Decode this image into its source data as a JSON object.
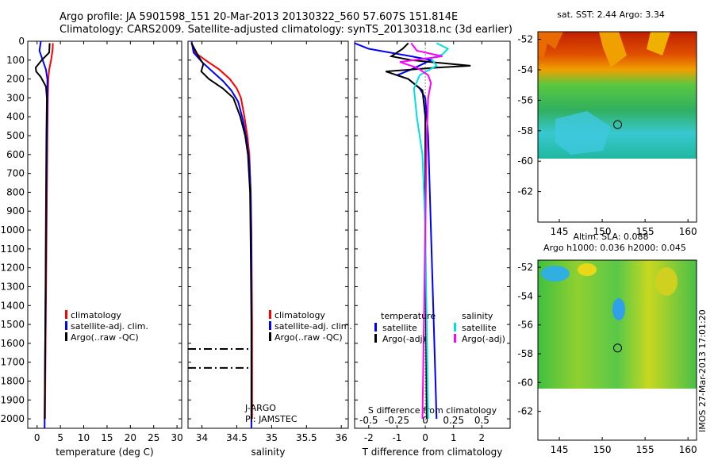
{
  "header": {
    "line1": "Argo profile: JA 5901598_151 20-Mar-2013 20130322_560 57.607S 151.814E",
    "line2": "Climatology: CARS2009. Satellite-adjusted climatology: synTS_20130318.nc (3d earlier)"
  },
  "watermark": "IMOS 27-Mar-2013 17:01:20",
  "colors": {
    "climatology": "#ff0000",
    "satellite": "#0000ff",
    "argo": "#000000",
    "sal_satellite": "#00e0e0",
    "sal_argo": "#ff00ff",
    "empty_map": "#ffffff"
  },
  "shared_depth_axis": {
    "ylim": [
      0,
      2050
    ],
    "ticks": [
      0,
      100,
      200,
      300,
      400,
      500,
      600,
      700,
      800,
      900,
      1000,
      1100,
      1200,
      1300,
      1400,
      1500,
      1600,
      1700,
      1800,
      1900,
      2000
    ]
  },
  "chart_data": [
    {
      "type": "line",
      "id": "temperature",
      "xlabel": "temperature (deg C)",
      "xlim": [
        -2,
        31
      ],
      "xticks": [
        0,
        5,
        10,
        15,
        20,
        25,
        30
      ],
      "ylim": [
        0,
        2050
      ],
      "legend": [
        "climatology",
        "satellite-adj. clim.",
        "Argo(..raw -QC)"
      ],
      "series": [
        {
          "name": "climatology",
          "color_key": "climatology",
          "x": [
            3.4,
            3.3,
            3.0,
            2.6,
            2.4,
            2.3,
            2.2,
            2.1,
            2.0,
            1.9,
            1.8,
            1.7
          ],
          "y": [
            10,
            50,
            100,
            150,
            200,
            300,
            500,
            800,
            1100,
            1400,
            1700,
            2000
          ]
        },
        {
          "name": "satellite-adj. clim.",
          "color_key": "satellite",
          "x": [
            0.8,
            0.5,
            1.2,
            1.9,
            2.2,
            2.2,
            2.1,
            2.0,
            1.9,
            1.8,
            1.7,
            1.6
          ],
          "y": [
            0,
            50,
            100,
            150,
            200,
            300,
            500,
            800,
            1100,
            1400,
            1700,
            2050
          ]
        },
        {
          "name": "Argo(..raw -QC)",
          "color_key": "argo",
          "x": [
            2.7,
            2.6,
            1.0,
            -0.3,
            -0.2,
            0.8,
            1.9,
            2.1,
            2.0,
            1.9,
            1.8,
            1.6
          ],
          "y": [
            10,
            60,
            100,
            140,
            160,
            190,
            240,
            300,
            500,
            900,
            1400,
            2000
          ]
        }
      ]
    },
    {
      "type": "line",
      "id": "salinity",
      "xlabel": "salinity",
      "xlim": [
        33.8,
        36.1
      ],
      "xticks": [
        34,
        34.5,
        35,
        35.5,
        36
      ],
      "xticklabels": [
        "34",
        "34.5",
        "35",
        "35.5",
        "36"
      ],
      "ylim": [
        0,
        2050
      ],
      "legend": [
        "climatology",
        "satellite-adj. clim.",
        "Argo(..raw -QC)"
      ],
      "annotation_lines": [
        "J-ARGO",
        "PI: JAMSTEC"
      ],
      "series": [
        {
          "name": "climatology",
          "color_key": "climatology",
          "x": [
            33.85,
            33.9,
            34.05,
            34.25,
            34.4,
            34.5,
            34.56,
            34.61,
            34.65,
            34.68,
            34.7,
            34.71,
            34.72,
            34.72
          ],
          "y": [
            10,
            60,
            100,
            150,
            200,
            250,
            300,
            400,
            500,
            600,
            800,
            1000,
            1500,
            2000
          ]
        },
        {
          "name": "satellite-adj. clim.",
          "color_key": "satellite",
          "x": [
            33.85,
            33.88,
            34.0,
            34.15,
            34.3,
            34.42,
            34.52,
            34.59,
            34.64,
            34.68,
            34.7,
            34.71,
            34.71,
            34.71
          ],
          "y": [
            0,
            60,
            110,
            160,
            210,
            260,
            320,
            420,
            520,
            640,
            800,
            1100,
            1500,
            2050
          ]
        },
        {
          "name": "Argo(..raw -QC)",
          "color_key": "argo",
          "x": [
            33.85,
            33.95,
            34.02,
            33.99,
            34.1,
            34.3,
            34.45,
            34.55,
            34.62,
            34.66,
            34.69,
            34.7,
            34.71,
            34.71
          ],
          "y": [
            10,
            80,
            120,
            160,
            200,
            250,
            300,
            400,
            500,
            600,
            800,
            1100,
            1500,
            2000
          ]
        }
      ],
      "dashdot_segments": [
        {
          "x": [
            33.8,
            34.68
          ],
          "y": [
            1630,
            1630
          ]
        },
        {
          "x": [
            33.8,
            34.68
          ],
          "y": [
            1730,
            1730
          ]
        }
      ]
    },
    {
      "type": "line",
      "id": "difference",
      "xlabel": "T difference from climatology",
      "xlabel_top": "S difference from climatology",
      "xlim": [
        -2.5,
        3.0
      ],
      "xticks": [
        -2,
        -1,
        0,
        1,
        2
      ],
      "top_ticklabels": [
        "-0.5",
        "-0.25",
        "0",
        "0.25",
        "0.5"
      ],
      "top_tick_positions": [
        -2,
        -1,
        0,
        1,
        2
      ],
      "ylim": [
        0,
        2050
      ],
      "legend_groups": [
        {
          "heading": "temperature",
          "items": [
            "satellite",
            "Argo(-adj)"
          ]
        },
        {
          "heading": "salinity",
          "items": [
            "satellite",
            "Argo(-adj)"
          ]
        }
      ],
      "series": [
        {
          "name": "T satellite",
          "color_key": "satellite",
          "x": [
            -2.5,
            -2.0,
            -0.5,
            0.2,
            -0.5,
            -1.0,
            -0.6,
            -0.2,
            0.0,
            0.1,
            0.2,
            0.3,
            0.4
          ],
          "y": [
            10,
            40,
            80,
            100,
            150,
            180,
            200,
            250,
            300,
            500,
            1000,
            1500,
            2000
          ]
        },
        {
          "name": "T Argo(-adj)",
          "color_key": "argo",
          "x": [
            -0.6,
            -0.8,
            -1.2,
            -0.5,
            0.2,
            1.6,
            0.4,
            -1.4,
            -0.6,
            -0.1,
            0.0,
            0.0,
            0.05
          ],
          "y": [
            10,
            40,
            80,
            100,
            110,
            130,
            140,
            160,
            200,
            260,
            400,
            1000,
            2000
          ]
        },
        {
          "name": "S satellite",
          "color_key": "sal_satellite",
          "x": [
            0.4,
            0.8,
            0.6,
            0.2,
            0.4,
            -0.2,
            -0.4,
            -0.3,
            -0.1,
            0.0,
            0.05,
            0.1
          ],
          "y": [
            10,
            40,
            70,
            90,
            130,
            180,
            250,
            400,
            600,
            1000,
            1500,
            2000
          ]
        },
        {
          "name": "S Argo(-adj)",
          "color_key": "sal_argo",
          "x": [
            -0.5,
            -0.3,
            0.6,
            -0.9,
            -0.3,
            0.1,
            0.2,
            0.1,
            0.05,
            0.0,
            -0.05,
            -0.1
          ],
          "y": [
            10,
            50,
            80,
            110,
            140,
            180,
            220,
            300,
            500,
            1000,
            1500,
            2000
          ]
        }
      ]
    },
    {
      "type": "heatmap",
      "id": "sst_map",
      "title": "sat. SST: 2.44 Argo: 3.34",
      "xlim": [
        142.5,
        161
      ],
      "ylim": [
        -64,
        -51.5
      ],
      "xticks": [
        145,
        150,
        155,
        160
      ],
      "yticks": [
        -52,
        -54,
        -56,
        -58,
        -60,
        -62
      ],
      "data_ylim": [
        -60,
        -51.5
      ],
      "argo_marker": {
        "lon": 151.8,
        "lat": -57.6
      }
    },
    {
      "type": "heatmap",
      "id": "sla_map",
      "title_lines": [
        "Altim. SLA: 0.088",
        "Argo h1000: 0.036 h2000: 0.045"
      ],
      "xlim": [
        142.5,
        161
      ],
      "ylim": [
        -64,
        -51.5
      ],
      "xticks": [
        145,
        150,
        155,
        160
      ],
      "yticks": [
        -52,
        -54,
        -56,
        -58,
        -60,
        -62
      ],
      "data_ylim": [
        -60,
        -51.5
      ],
      "argo_marker": {
        "lon": 151.8,
        "lat": -57.6
      }
    }
  ]
}
